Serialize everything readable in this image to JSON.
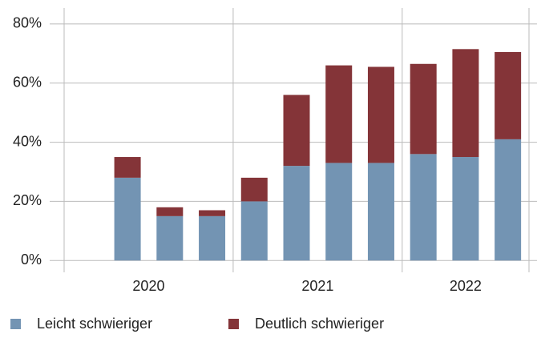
{
  "chart_data": {
    "type": "stacked_bar",
    "categories": [
      null,
      null,
      null,
      null,
      null,
      null,
      null,
      null,
      null,
      null,
      null
    ],
    "groups": [
      {
        "label": "2020",
        "size": 4
      },
      {
        "label": "2021",
        "size": 4
      },
      {
        "label": "2022",
        "size": 3
      }
    ],
    "series": [
      {
        "name": "Leicht schwieriger",
        "color": "#7394b3",
        "values": [
          null,
          28,
          15,
          15,
          20,
          32,
          33,
          33,
          36,
          35,
          41
        ]
      },
      {
        "name": "Deutlich schwieriger",
        "color": "#843438",
        "values": [
          null,
          7,
          3,
          2,
          8,
          24,
          33,
          32.5,
          30.5,
          36.5,
          29.5
        ]
      }
    ],
    "ylim": [
      -4,
      85.4
    ],
    "yticks": [
      {
        "value": 0,
        "label": "0%"
      },
      {
        "value": 20,
        "label": "20%"
      },
      {
        "value": 40,
        "label": "40%"
      },
      {
        "value": 60,
        "label": "60%"
      },
      {
        "value": 80,
        "label": "80%"
      }
    ],
    "grid": true,
    "legend": "bottom"
  }
}
